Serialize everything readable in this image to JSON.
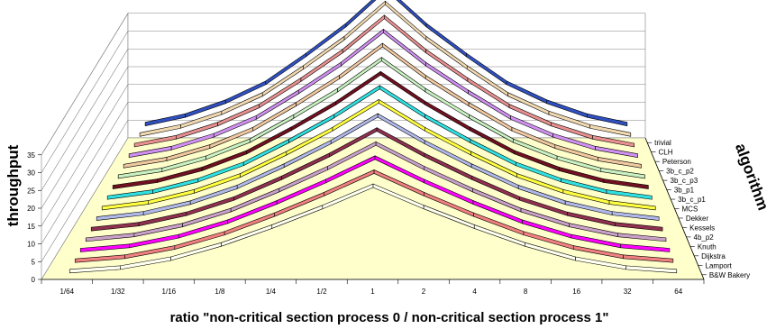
{
  "chart_data": {
    "type": "line",
    "style": "3d-ribbon",
    "title": "",
    "xlabel": "ratio \"non-critical section process 0 / non-critical section process 1\"",
    "ylabel": "throughput",
    "zlabel": "algorithm",
    "ylim": [
      0,
      35
    ],
    "yticks": [
      "0",
      "5",
      "10",
      "15",
      "20",
      "25",
      "30",
      "35"
    ],
    "grid": true,
    "categories": [
      "1/64",
      "1/32",
      "1/16",
      "1/8",
      "1/4",
      "1/2",
      "1",
      "2",
      "4",
      "8",
      "16",
      "32",
      "64"
    ],
    "series": [
      {
        "name": "B&W Bakery",
        "color": "#fffff0",
        "values": [
          1.0,
          2.0,
          4.5,
          8.5,
          13.5,
          19.0,
          25.0,
          19.0,
          13.5,
          8.5,
          4.5,
          2.0,
          1.0
        ]
      },
      {
        "name": "Lamport",
        "color": "#f08080",
        "values": [
          1.3,
          2.4,
          5.0,
          9.0,
          14.2,
          20.0,
          26.3,
          20.0,
          14.2,
          9.0,
          5.0,
          2.4,
          1.3
        ]
      },
      {
        "name": "Dijkstra",
        "color": "#ff00ff",
        "values": [
          1.6,
          2.8,
          5.5,
          9.6,
          15.0,
          21.0,
          27.6,
          21.0,
          15.0,
          9.6,
          5.5,
          2.8,
          1.6
        ]
      },
      {
        "name": "Knuth",
        "color": "#c8a0c8",
        "values": [
          1.9,
          3.2,
          6.0,
          10.2,
          15.8,
          22.0,
          28.9,
          22.0,
          15.8,
          10.2,
          6.0,
          3.2,
          1.9
        ]
      },
      {
        "name": "4b_p2",
        "color": "#903050",
        "values": [
          2.2,
          3.6,
          6.5,
          10.8,
          16.6,
          23.0,
          30.2,
          23.0,
          16.6,
          10.8,
          6.5,
          3.6,
          2.2
        ]
      },
      {
        "name": "Kessels",
        "color": "#b0b8e8",
        "values": [
          2.5,
          4.0,
          7.0,
          11.4,
          17.4,
          24.0,
          31.5,
          24.0,
          17.4,
          11.4,
          7.0,
          4.0,
          2.5
        ]
      },
      {
        "name": "Dekker",
        "color": "#ffff40",
        "values": [
          2.8,
          4.4,
          7.5,
          12.0,
          18.2,
          25.0,
          32.8,
          25.0,
          18.2,
          12.0,
          7.5,
          4.4,
          2.8
        ]
      },
      {
        "name": "MCS",
        "color": "#30e0e0",
        "values": [
          3.1,
          4.8,
          8.0,
          12.6,
          19.0,
          26.0,
          34.1,
          26.0,
          19.0,
          12.6,
          8.0,
          4.8,
          3.1
        ]
      },
      {
        "name": "3b_c_p1",
        "color": "#701020",
        "values": [
          3.4,
          5.2,
          8.5,
          13.2,
          19.8,
          27.0,
          35.4,
          27.0,
          19.8,
          13.2,
          8.5,
          5.2,
          3.4
        ]
      },
      {
        "name": "3b_p1",
        "color": "#c8f0c0",
        "values": [
          3.7,
          5.6,
          9.0,
          13.8,
          20.6,
          28.0,
          36.7,
          28.0,
          20.6,
          13.8,
          9.0,
          5.6,
          3.7
        ]
      },
      {
        "name": "3b_c_p3",
        "color": "#f0c8a0",
        "values": [
          4.0,
          6.0,
          9.5,
          14.4,
          21.4,
          29.0,
          38.0,
          29.0,
          21.4,
          14.4,
          9.5,
          6.0,
          4.0
        ]
      },
      {
        "name": "3b_c_p2",
        "color": "#d090f0",
        "values": [
          4.3,
          6.4,
          10.0,
          15.0,
          22.2,
          30.0,
          39.3,
          30.0,
          22.2,
          15.0,
          10.0,
          6.4,
          4.3
        ]
      },
      {
        "name": "Peterson",
        "color": "#e89090",
        "values": [
          4.6,
          6.8,
          10.5,
          15.6,
          23.0,
          31.0,
          40.6,
          31.0,
          23.0,
          15.6,
          10.5,
          6.8,
          4.6
        ]
      },
      {
        "name": "CLH",
        "color": "#f0d8b0",
        "values": [
          4.9,
          7.2,
          11.0,
          16.2,
          23.8,
          32.0,
          41.9,
          32.0,
          23.8,
          16.2,
          11.0,
          7.2,
          4.9
        ]
      },
      {
        "name": "trivial",
        "color": "#3050c0",
        "values": [
          5.2,
          7.6,
          11.5,
          16.8,
          24.6,
          33.0,
          43.2,
          33.0,
          24.6,
          16.8,
          11.5,
          7.6,
          5.2
        ]
      }
    ],
    "floor_color": "#ffffcc",
    "legend": "depth axis labels along right side"
  }
}
